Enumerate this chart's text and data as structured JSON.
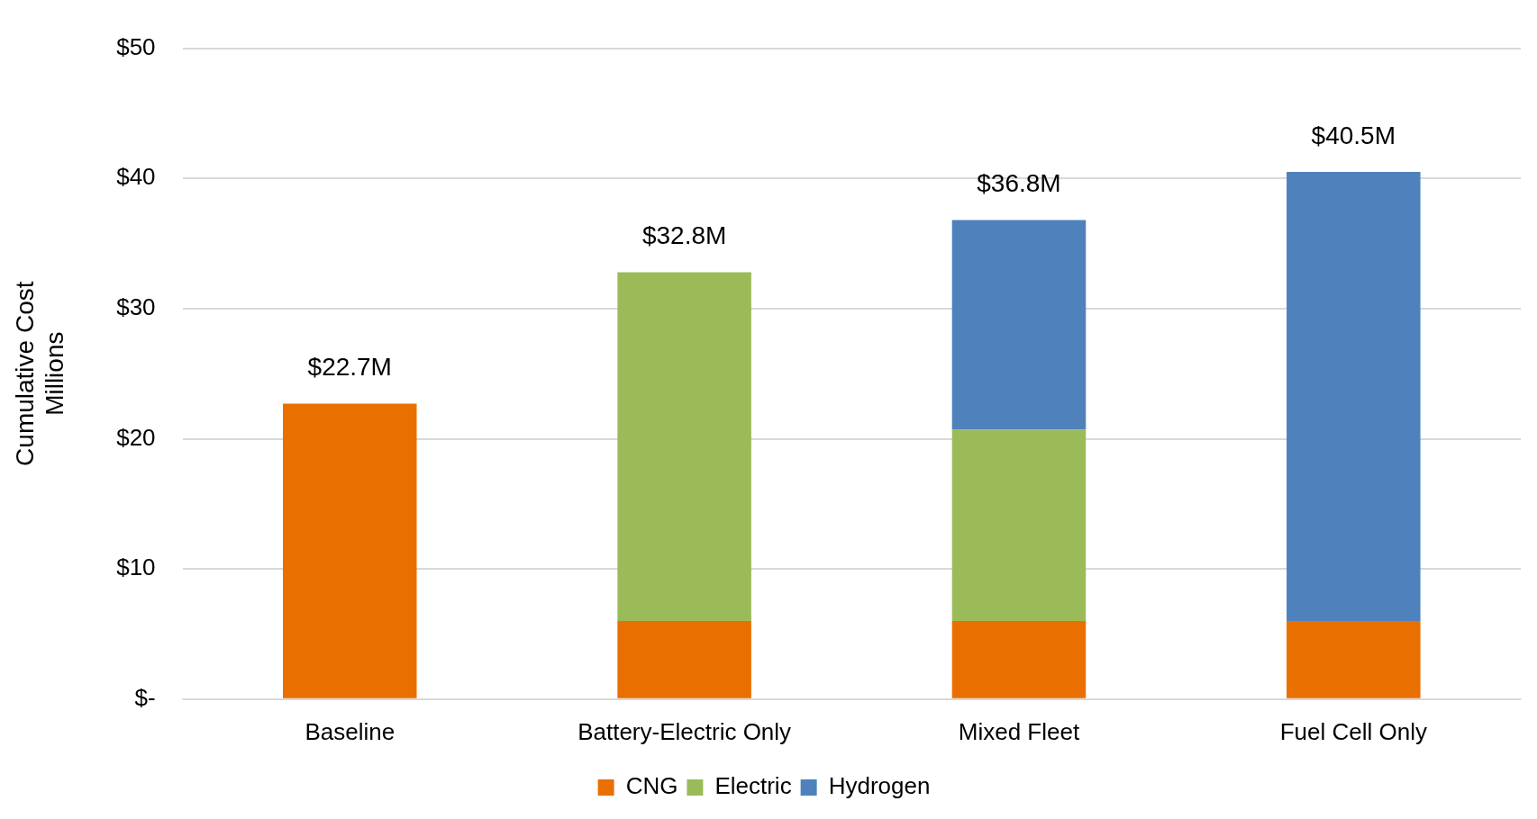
{
  "chart_data": {
    "type": "bar",
    "stacked": true,
    "ylabel": "Cumulative Cost\nMillions",
    "categories": [
      "Baseline",
      "Battery-Electric Only",
      "Mixed Fleet",
      "Fuel Cell Only"
    ],
    "series": [
      {
        "name": "CNG",
        "color": "#e97000",
        "values": [
          22.7,
          6.0,
          6.0,
          6.0
        ]
      },
      {
        "name": "Electric",
        "color": "#9bbb59",
        "values": [
          null,
          26.8,
          14.7,
          null
        ]
      },
      {
        "name": "Hydrogen",
        "color": "#4f81bd",
        "values": [
          null,
          null,
          16.1,
          34.5
        ]
      }
    ],
    "ylim": [
      0,
      50
    ],
    "yticks": [
      {
        "value": 0,
        "label": "$-"
      },
      {
        "value": 10,
        "label": "$10"
      },
      {
        "value": 20,
        "label": "$20"
      },
      {
        "value": 30,
        "label": "$30"
      },
      {
        "value": 40,
        "label": "$40"
      },
      {
        "value": 50,
        "label": "$50"
      }
    ],
    "totals": [
      "$22.7M",
      "$32.8M",
      "$36.8M",
      "$40.5M"
    ],
    "grid": "y",
    "legend": "bottom"
  }
}
